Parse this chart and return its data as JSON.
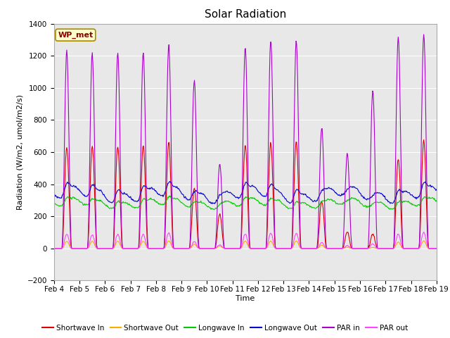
{
  "title": "Solar Radiation",
  "xlabel": "Time",
  "ylabel": "Radiation (W/m2, umol/m2/s)",
  "ylim": [
    -200,
    1400
  ],
  "xlim_days": [
    4,
    19
  ],
  "annotation": "WP_met",
  "background_color": "#e8e8e8",
  "series": {
    "shortwave_in": {
      "color": "#dd0000",
      "label": "Shortwave In"
    },
    "shortwave_out": {
      "color": "#ffaa00",
      "label": "Shortwave Out"
    },
    "longwave_in": {
      "color": "#00cc00",
      "label": "Longwave In"
    },
    "longwave_out": {
      "color": "#0000cc",
      "label": "Longwave Out"
    },
    "par_in": {
      "color": "#aa00cc",
      "label": "PAR in"
    },
    "par_out": {
      "color": "#ff44ff",
      "label": "PAR out"
    }
  },
  "yticks": [
    -200,
    0,
    200,
    400,
    600,
    800,
    1000,
    1200,
    1400
  ],
  "xtick_labels": [
    "Feb 4",
    "Feb 5",
    "Feb 6",
    "Feb 7",
    "Feb 8",
    "Feb 9",
    "Feb 10",
    "Feb 11",
    "Feb 12",
    "Feb 13",
    "Feb 14",
    "Feb 15",
    "Feb 16",
    "Feb 17",
    "Feb 18",
    "Feb 19"
  ],
  "title_fontsize": 11,
  "label_fontsize": 8,
  "tick_fontsize": 7.5
}
